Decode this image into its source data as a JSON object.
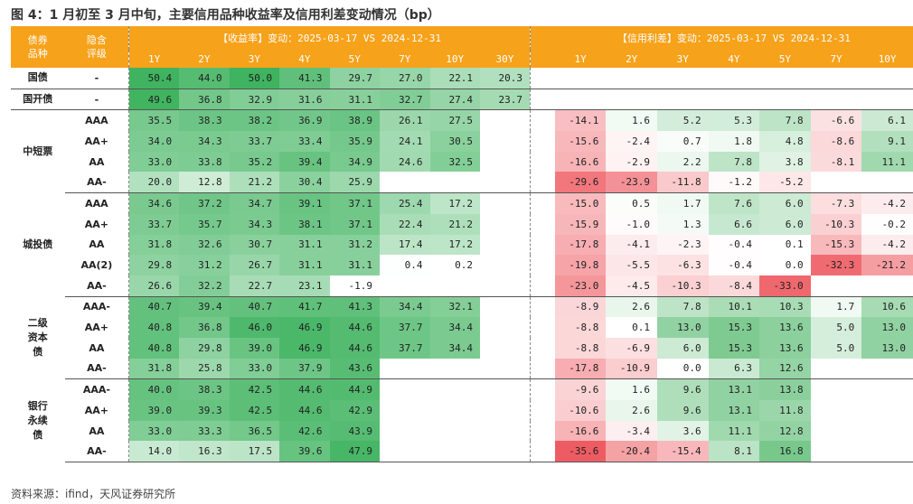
{
  "title": "图 4：1 月初至 3 月中旬，主要信用品种收益率及信用利差变动情况（bp）",
  "source": "资料来源：ifind，天风证券研究所",
  "table": {
    "col_headers": {
      "variety": "债券品种",
      "rating": "隐含评级"
    },
    "yield_header": "【收益率】变动：2025-03-17 VS 2024-12-31",
    "spread_header": "【信用利差】变动：2025-03-17 VS 2024-12-31",
    "yield_tenors": [
      "1Y",
      "2Y",
      "3Y",
      "4Y",
      "5Y",
      "7Y",
      "10Y",
      "30Y"
    ],
    "spread_tenors": [
      "1Y",
      "2Y",
      "3Y",
      "4Y",
      "5Y",
      "7Y",
      "10Y"
    ]
  },
  "colors": {
    "header": "#F7A21B",
    "positive": "#3FB35F",
    "negative": "#EE5A61"
  },
  "chart_data": {
    "type": "table",
    "title": "图 4：1 月初至 3 月中旬，主要信用品种收益率及信用利差变动情况（bp）",
    "groups": [
      {
        "name": "国债",
        "rows": [
          {
            "rating": "-",
            "yield": [
              50.4,
              44.0,
              50.0,
              41.3,
              29.7,
              27.0,
              22.1,
              20.3
            ],
            "spread": [
              null,
              null,
              null,
              null,
              null,
              null,
              null
            ]
          }
        ]
      },
      {
        "name": "国开债",
        "rows": [
          {
            "rating": "-",
            "yield": [
              49.6,
              36.8,
              32.9,
              31.6,
              31.1,
              32.7,
              27.4,
              23.7
            ],
            "spread": [
              null,
              null,
              null,
              null,
              null,
              null,
              null
            ]
          }
        ]
      },
      {
        "name": "中短票",
        "rows": [
          {
            "rating": "AAA",
            "yield": [
              35.5,
              38.3,
              38.2,
              36.9,
              38.9,
              26.1,
              27.5,
              null
            ],
            "spread": [
              -14.1,
              1.6,
              5.2,
              5.3,
              7.8,
              -6.6,
              6.1
            ]
          },
          {
            "rating": "AA+",
            "yield": [
              34.0,
              34.3,
              33.7,
              33.4,
              35.9,
              24.1,
              30.5,
              null
            ],
            "spread": [
              -15.6,
              -2.4,
              0.7,
              1.8,
              4.8,
              -8.6,
              9.1
            ]
          },
          {
            "rating": "AA",
            "yield": [
              33.0,
              33.8,
              35.2,
              39.4,
              34.9,
              24.6,
              32.5,
              null
            ],
            "spread": [
              -16.6,
              -2.9,
              2.2,
              7.8,
              3.8,
              -8.1,
              11.1
            ]
          },
          {
            "rating": "AA-",
            "yield": [
              20.0,
              12.8,
              21.2,
              30.4,
              25.9,
              null,
              null,
              null
            ],
            "spread": [
              -29.6,
              -23.9,
              -11.8,
              -1.2,
              -5.2,
              null,
              null
            ]
          }
        ]
      },
      {
        "name": "城投债",
        "rows": [
          {
            "rating": "AAA",
            "yield": [
              34.6,
              37.2,
              34.7,
              39.1,
              37.1,
              25.4,
              17.2,
              null
            ],
            "spread": [
              -15.0,
              0.5,
              1.7,
              7.6,
              6.0,
              -7.3,
              -4.2
            ]
          },
          {
            "rating": "AA+",
            "yield": [
              33.7,
              35.7,
              34.3,
              38.1,
              37.1,
              22.4,
              21.2,
              null
            ],
            "spread": [
              -15.9,
              -1.0,
              1.3,
              6.6,
              6.0,
              -10.3,
              -0.2
            ]
          },
          {
            "rating": "AA",
            "yield": [
              31.8,
              32.6,
              30.7,
              31.1,
              31.2,
              17.4,
              17.2,
              null
            ],
            "spread": [
              -17.8,
              -4.1,
              -2.3,
              -0.4,
              0.1,
              -15.3,
              -4.2
            ]
          },
          {
            "rating": "AA(2)",
            "yield": [
              29.8,
              31.2,
              26.7,
              31.1,
              31.1,
              0.4,
              0.2,
              null
            ],
            "spread": [
              -19.8,
              -5.5,
              -6.3,
              -0.4,
              0.0,
              -32.3,
              -21.2
            ]
          },
          {
            "rating": "AA-",
            "yield": [
              26.6,
              32.2,
              22.7,
              23.1,
              -1.9,
              null,
              null,
              null
            ],
            "spread": [
              -23.0,
              -4.5,
              -10.3,
              -8.4,
              -33.0,
              null,
              null
            ]
          }
        ]
      },
      {
        "name": "二级资本债",
        "rows": [
          {
            "rating": "AAA-",
            "yield": [
              40.7,
              39.4,
              40.7,
              41.7,
              41.3,
              34.4,
              32.1,
              null
            ],
            "spread": [
              -8.9,
              2.6,
              7.8,
              10.1,
              10.3,
              1.7,
              10.6
            ]
          },
          {
            "rating": "AA+",
            "yield": [
              40.8,
              36.8,
              46.0,
              46.9,
              44.6,
              37.7,
              34.4,
              null
            ],
            "spread": [
              -8.8,
              0.1,
              13.0,
              15.3,
              13.6,
              5.0,
              13.0
            ]
          },
          {
            "rating": "AA",
            "yield": [
              40.8,
              29.8,
              39.0,
              46.9,
              44.6,
              37.7,
              34.4,
              null
            ],
            "spread": [
              -8.8,
              -6.9,
              6.0,
              15.3,
              13.6,
              5.0,
              13.0
            ]
          },
          {
            "rating": "AA-",
            "yield": [
              31.8,
              25.8,
              33.0,
              37.9,
              43.6,
              null,
              null,
              null
            ],
            "spread": [
              -17.8,
              -10.9,
              0.0,
              6.3,
              12.6,
              null,
              null
            ]
          }
        ]
      },
      {
        "name": "银行永续债",
        "rows": [
          {
            "rating": "AAA-",
            "yield": [
              40.0,
              38.3,
              42.5,
              44.6,
              44.9,
              null,
              null,
              null
            ],
            "spread": [
              -9.6,
              1.6,
              9.6,
              13.1,
              13.8,
              null,
              null
            ]
          },
          {
            "rating": "AA+",
            "yield": [
              39.0,
              39.3,
              42.5,
              44.6,
              42.9,
              null,
              null,
              null
            ],
            "spread": [
              -10.6,
              2.6,
              9.6,
              13.1,
              11.8,
              null,
              null
            ]
          },
          {
            "rating": "AA",
            "yield": [
              33.0,
              33.3,
              36.5,
              42.6,
              43.9,
              null,
              null,
              null
            ],
            "spread": [
              -16.6,
              -3.4,
              3.6,
              11.1,
              12.8,
              null,
              null
            ]
          },
          {
            "rating": "AA-",
            "yield": [
              14.0,
              16.3,
              17.5,
              39.6,
              47.9,
              null,
              null,
              null
            ],
            "spread": [
              -35.6,
              -20.4,
              -15.4,
              8.1,
              16.8,
              null,
              null
            ]
          }
        ]
      }
    ]
  }
}
